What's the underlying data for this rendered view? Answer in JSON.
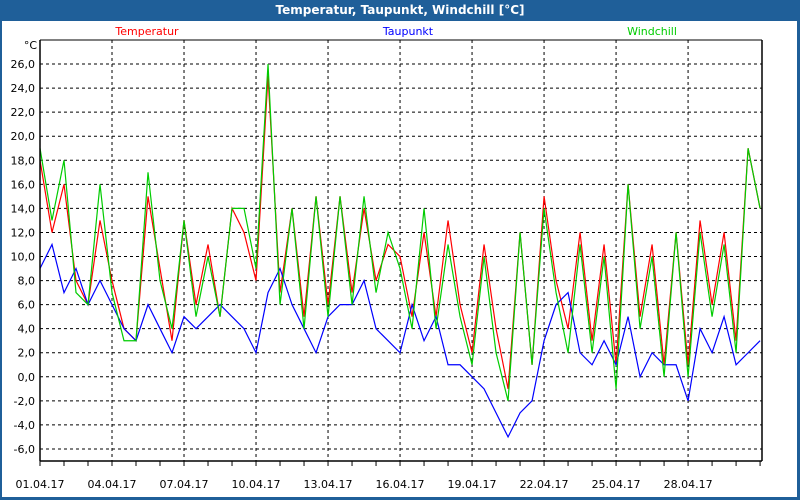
{
  "window": {
    "title": "Temperatur, Taupunkt, Windchill [°C]"
  },
  "chart_data": {
    "type": "line",
    "title": "Temperatur, Taupunkt, Windchill [°C]",
    "ylabel": "°C",
    "xlabel": "",
    "ylim": [
      -7,
      28
    ],
    "xlim_days": [
      0,
      30.08
    ],
    "grid": true,
    "legend_placement": "top",
    "yticks": [
      26,
      24,
      22,
      20,
      18,
      16,
      14,
      12,
      10,
      8,
      6,
      4,
      2,
      0,
      -2,
      -4,
      -6
    ],
    "ytick_labels": [
      "26,0",
      "24,0",
      "22,0",
      "20,0",
      "18,0",
      "16,0",
      "14,0",
      "12,0",
      "10,0",
      "8,0",
      "6,0",
      "4,0",
      "2,0",
      "0,0",
      "-2,0",
      "-4,0",
      "-6,0"
    ],
    "xticks_days": [
      0,
      3,
      6,
      9,
      12,
      15,
      18,
      21,
      24,
      27
    ],
    "xtick_labels": [
      "01.04.17",
      "04.04.17",
      "07.04.17",
      "10.04.17",
      "13.04.17",
      "16.04.17",
      "19.04.17",
      "22.04.17",
      "25.04.17",
      "28.04.17"
    ],
    "x_step_days": 0.5,
    "series": [
      {
        "name": "Temperatur",
        "color": "#ff0000",
        "values": [
          18,
          12,
          16,
          8,
          6,
          13,
          8,
          4,
          3,
          15,
          9,
          3,
          13,
          6,
          11,
          5,
          14,
          12,
          8,
          25,
          7,
          14,
          5,
          15,
          6,
          15,
          7,
          14,
          8,
          11,
          10,
          5,
          12,
          5,
          13,
          6,
          2,
          11,
          4,
          -1,
          12,
          1,
          15,
          8,
          4,
          12,
          3,
          11,
          1,
          16,
          5,
          11,
          1,
          12,
          1,
          13,
          6,
          12,
          3,
          19,
          14
        ]
      },
      {
        "name": "Taupunkt",
        "color": "#0000ff",
        "values": [
          9,
          11,
          7,
          9,
          6,
          8,
          6,
          4,
          3,
          6,
          4,
          2,
          5,
          4,
          5,
          6,
          5,
          4,
          2,
          7,
          9,
          6,
          4,
          2,
          5,
          6,
          6,
          8,
          4,
          3,
          2,
          6,
          3,
          5,
          1,
          1,
          0,
          -1,
          -3,
          -5,
          -3,
          -2,
          3,
          6,
          7,
          2,
          1,
          3,
          1,
          5,
          0,
          2,
          1,
          1,
          -2,
          4,
          2,
          5,
          1,
          2,
          3
        ]
      },
      {
        "name": "Windchill",
        "color": "#00cc00",
        "values": [
          19,
          13,
          18,
          7,
          6,
          16,
          7,
          3,
          3,
          17,
          8,
          4,
          13,
          5,
          10,
          5,
          14,
          14,
          9,
          26,
          6,
          14,
          4,
          15,
          5,
          15,
          6,
          15,
          7,
          12,
          9,
          4,
          14,
          4,
          11,
          5,
          1,
          10,
          2,
          -2,
          12,
          1,
          14,
          7,
          2,
          11,
          2,
          10,
          -1,
          16,
          4,
          10,
          0,
          12,
          0,
          12,
          5,
          11,
          2,
          19,
          14
        ]
      }
    ]
  }
}
